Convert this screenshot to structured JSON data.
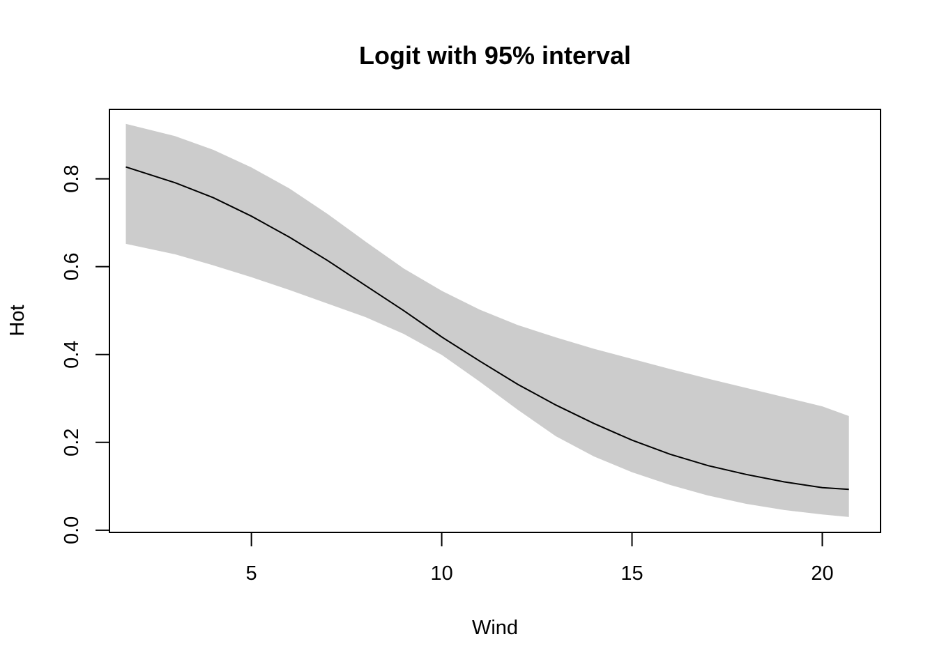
{
  "chart_data": {
    "type": "line",
    "title": "Logit with 95% interval",
    "xlabel": "Wind",
    "ylabel": "Hot",
    "xlim": [
      1.27,
      21.53
    ],
    "ylim": [
      -0.005,
      0.958
    ],
    "x_ticks": [
      5,
      10,
      15,
      20
    ],
    "x_tick_labels": [
      "5",
      "10",
      "15",
      "20"
    ],
    "y_ticks": [
      0.0,
      0.2,
      0.4,
      0.6,
      0.8
    ],
    "y_tick_labels": [
      "0.0",
      "0.2",
      "0.4",
      "0.6",
      "0.8"
    ],
    "grid": false,
    "legend": "none",
    "series": [
      {
        "role": "fit",
        "color": "#000000",
        "x": [
          1.7,
          3.0,
          4.0,
          5.0,
          6.0,
          7.0,
          8.0,
          9.0,
          10.0,
          11.0,
          12.0,
          13.0,
          14.0,
          15.0,
          16.0,
          17.0,
          18.0,
          19.0,
          20.0,
          20.7
        ],
        "y": [
          0.827,
          0.791,
          0.757,
          0.715,
          0.667,
          0.614,
          0.557,
          0.5,
          0.44,
          0.385,
          0.332,
          0.285,
          0.243,
          0.205,
          0.173,
          0.147,
          0.127,
          0.11,
          0.097,
          0.093
        ]
      },
      {
        "role": "interval",
        "color": "#cccccc",
        "x": [
          1.7,
          3.0,
          4.0,
          5.0,
          6.0,
          7.0,
          8.0,
          9.0,
          10.0,
          11.0,
          12.0,
          13.0,
          14.0,
          15.0,
          16.0,
          17.0,
          18.0,
          19.0,
          20.0,
          20.7
        ],
        "upper": [
          0.925,
          0.897,
          0.866,
          0.826,
          0.778,
          0.72,
          0.657,
          0.596,
          0.545,
          0.502,
          0.467,
          0.439,
          0.413,
          0.39,
          0.367,
          0.345,
          0.324,
          0.303,
          0.282,
          0.26
        ],
        "lower": [
          0.652,
          0.628,
          0.603,
          0.576,
          0.547,
          0.516,
          0.485,
          0.447,
          0.399,
          0.338,
          0.274,
          0.214,
          0.168,
          0.132,
          0.103,
          0.079,
          0.06,
          0.046,
          0.036,
          0.03
        ]
      }
    ]
  }
}
